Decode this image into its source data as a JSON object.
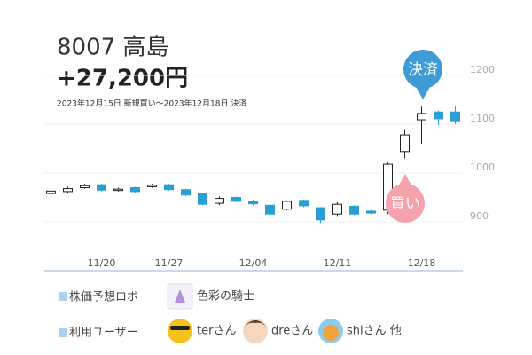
{
  "chart_data": {
    "type": "candlestick",
    "title": "8007 高島",
    "subtitle": "+27,200円",
    "note": "2023年12月15日 新規買い〜2023年12月18日 決済",
    "annotations": [
      "決済",
      "買い"
    ],
    "categories": [
      null,
      null,
      null,
      "11/20",
      null,
      null,
      null,
      "11/27",
      null,
      null,
      null,
      null,
      "12/04",
      null,
      null,
      null,
      null,
      "12/11",
      null,
      null,
      null,
      null,
      "12/18",
      null,
      null
    ],
    "series": [
      {
        "open": [
          958,
          962,
          970,
          976,
          966,
          970,
          972,
          976,
          966,
          958,
          938,
          950,
          942,
          934,
          926,
          944,
          929,
          916,
          932,
          922,
          924,
          1044,
          1109,
          1125,
          1125
        ],
        "high": [
          966,
          972,
          978,
          978,
          970,
          972,
          978,
          978,
          968,
          960,
          952,
          952,
          946,
          936,
          944,
          946,
          930,
          940,
          934,
          924,
          1022,
          1090,
          1136,
          1128,
          1138
        ],
        "low": [
          955,
          958,
          968,
          963,
          962,
          960,
          970,
          964,
          953,
          934,
          934,
          940,
          934,
          914,
          924,
          930,
          898,
          912,
          914,
          916,
          916,
          1030,
          1060,
          1098,
          1100
        ],
        "close": [
          963,
          968,
          974,
          965,
          967,
          962,
          975,
          966,
          955,
          936,
          948,
          942,
          937,
          916,
          942,
          933,
          904,
          936,
          916,
          918,
          1018,
          1078,
          1122,
          1111,
          1107
        ]
      }
    ],
    "up_color": "#ffffff",
    "down_color": "#2a9fd6",
    "ylim": [
      800,
      1300
    ],
    "yticks": [
      900,
      1000,
      1100,
      1200
    ],
    "grid": true
  },
  "footer": {
    "robot_label": "株価予想ロボ",
    "robot_name": "色彩の騎士",
    "users_label": "利用ユーザー",
    "users": [
      "terさん",
      "dreさん",
      "shiさん 他"
    ]
  }
}
